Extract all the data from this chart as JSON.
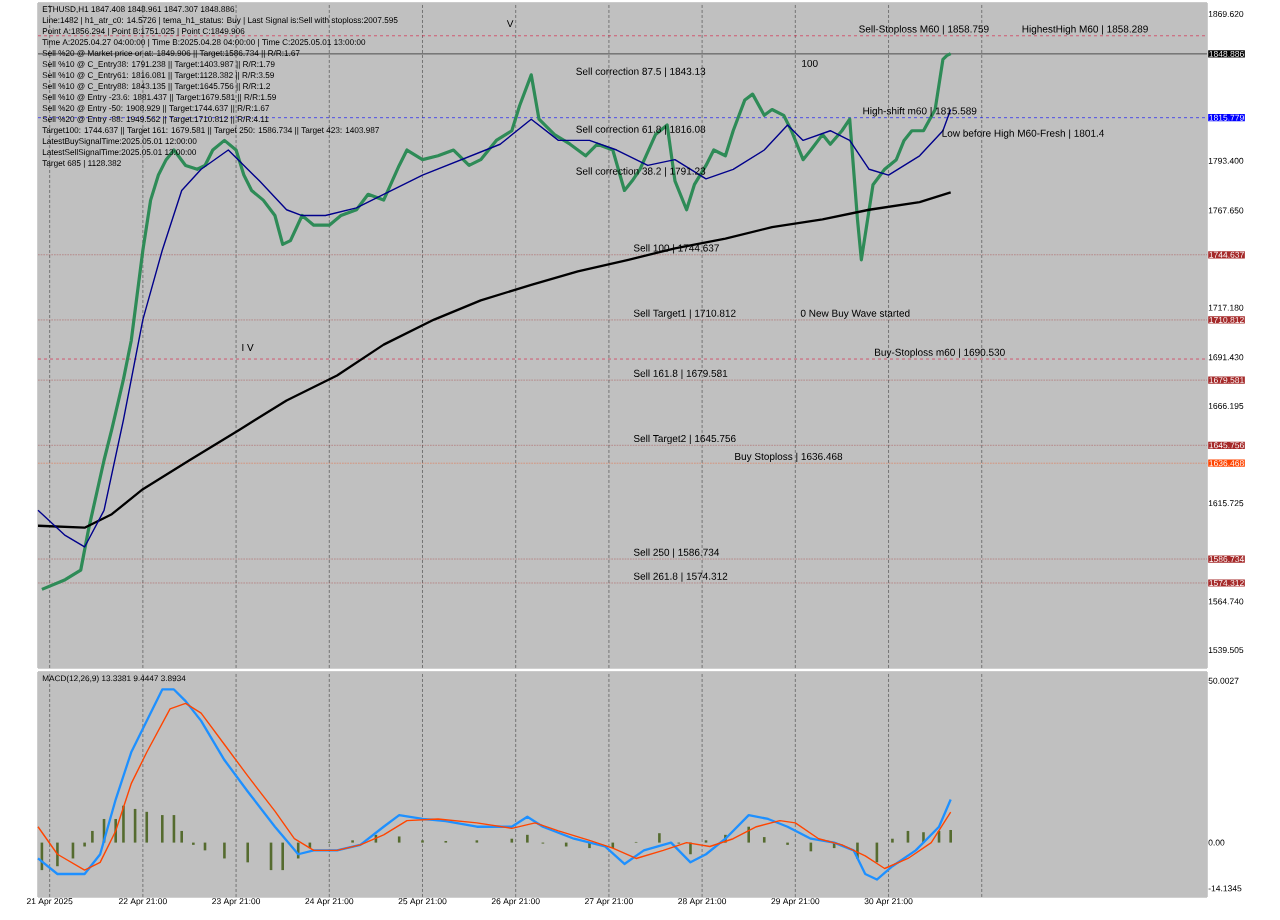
{
  "chart_data": [
    {
      "type": "line",
      "title": "ETHUSD,H1  1847.408 1848.961 1847.307 1848.886",
      "annotations": [
        "Line:1482 | h1_atr_c0: 14.5726 | tema_h1_status: Buy | Last Signal is:Sell with stoploss:2007.595",
        "Point A:1856.294 | Point B:1751.025 | Point C:1849.906",
        "Time A:2025.04.27 04:00:00 | Time B:2025.04.28 04:00:00 | Time C:2025.05.01 13:00:00",
        "Sell %20 @ Market price or at: 1849.906 || Target:1586.734 || R/R:1.67",
        "Sell %10 @ C_Entry38: 1791.238 || Target:1403.987 || R/R:1.79",
        "Sell %10 @ C_Entry61: 1816.081 || Target:1128.382 || R/R:3.59",
        "Sell %10 @ C_Entry88: 1843.135 || Target:1645.756 || R/R:1.2",
        "Sell %10 @ Entry -23.6: 1881.437 || Target:1679.581 || R/R:1.59",
        "Sell %20 @ Entry -50: 1908.929 || Target:1744.637 || R/R:1.67",
        "Sell %20 @ Entry -88: 1949.562 || Target:1710.812 || R/R:4.11",
        "Target100: 1744.637 || Target 161: 1679.581 || Target 250: 1586.734 || Target 423: 1403.987",
        "LatestBuySignalTime:2025.05.01 12:00:00",
        "LatestSellSignalTime:2025.05.01 13:00:00",
        "Target 685 | 1128.382",
        "Sell correction 87.5 | 1843.13",
        "Sell correction 61.8 | 1816.08",
        "Sell correction 38.2 | 1791.23",
        "Low before High    M60-Fresh | 1801.4",
        "100",
        "I V",
        "V",
        {
          "text": "Sell-Stoploss M60 | 1858.759",
          "x": "2025-04-30T13:00",
          "y": 1858.289
        },
        {
          "text": "HighestHigh M60 | 1858.289",
          "x": "2025-05-02T07:00",
          "y": 1858.289
        },
        {
          "text": "High-shift m60 | 1815.589",
          "x": "2025-04-30T14:00",
          "y": 1815.779
        },
        {
          "text": "Buy-Stoploss m60 | 1690.530",
          "x": "2025-04-30T17:00",
          "y": 1690.53
        },
        {
          "text": "Sell 100 | 1744.637",
          "x": "2025-04-28T03:00",
          "y": 1744.637
        },
        {
          "text": "Sell Target1 | 1710.812",
          "x": "2025-04-28T03:00",
          "y": 1710.812
        },
        {
          "text": "0 New Buy Wave started",
          "x": "2025-04-29T22:00",
          "y": 1710.812
        },
        {
          "text": "Sell 161.8 | 1679.581",
          "x": "2025-04-28T03:00",
          "y": 1679.581
        },
        {
          "text": "Sell Target2 | 1645.756",
          "x": "2025-04-28T03:00",
          "y": 1645.756
        },
        {
          "text": "Buy Stoploss | 1636.468",
          "x": "2025-04-29T05:00",
          "y": 1636.468
        },
        {
          "text": "Sell  250 | 1586.734",
          "x": "2025-04-28T03:00",
          "y": 1586.734
        },
        {
          "text": "Sell  261.8 | 1574.312",
          "x": "2025-04-28T03:00",
          "y": 1574.312
        }
      ],
      "xlim": [
        "2025-04-21T18:00",
        "2025-05-04T07:00"
      ],
      "xticks": [
        "2025-04-21T21:00",
        "2025-04-22T21:00",
        "2025-04-23T21:00",
        "2025-04-24T21:00",
        "2025-04-25T21:00",
        "2025-04-26T21:00",
        "2025-04-27T21:00",
        "2025-04-28T21:00",
        "2025-04-29T21:00",
        "2025-04-30T21:00",
        "2025-05-01T21:00"
      ],
      "tick_labels": "y",
      "grid": "x",
      "ylim": [
        1530.2,
        1875.3
      ],
      "yticks": [
        {
          "value": 1869.62,
          "label": "1869.620"
        },
        1848.886,
        1815.779,
        {
          "value": 1793.4,
          "label": "1793.400"
        },
        {
          "value": 1767.65,
          "label": "1767.650"
        },
        1744.637,
        {
          "value": 1717.18,
          "label": "1717.180"
        },
        1710.812,
        {
          "value": 1691.43,
          "label": "1691.430"
        },
        1679.581,
        1666.195,
        1645.756,
        1636.468,
        1615.725,
        1586.734,
        1574.312,
        {
          "value": 1564.74,
          "label": "1564.740"
        },
        1539.505
      ],
      "ref_lines": [
        {
          "axis": "y",
          "value": 1858.289,
          "color": "#dc143c",
          "line_style": "dashed"
        },
        {
          "axis": "y",
          "value": 1848.886,
          "color": "#000000",
          "line_style": "solid"
        },
        {
          "axis": "y",
          "value": 1815.779,
          "color": "#0000ff",
          "line_style": "dashed"
        },
        {
          "axis": "y",
          "value": 1744.637,
          "color": "#a52a2a",
          "line_style": "dotted"
        },
        {
          "axis": "y",
          "value": 1710.812,
          "color": "#a52a2a",
          "line_style": "dotted"
        },
        {
          "axis": "y",
          "value": 1690.53,
          "color": "#dc143c",
          "line_style": "dashed"
        },
        {
          "axis": "y",
          "value": 1679.581,
          "color": "#a52a2a",
          "line_style": "dotted"
        },
        {
          "axis": "y",
          "value": 1645.756,
          "color": "#a52a2a",
          "line_style": "dotted"
        },
        {
          "axis": "y",
          "value": 1636.468,
          "color": "#ff4500",
          "line_style": "dotted"
        },
        {
          "axis": "y",
          "value": 1586.734,
          "color": "#a52a2a",
          "line_style": "dotted"
        },
        {
          "axis": "y",
          "value": 1574.312,
          "color": "#a52a2a",
          "line_style": "dotted"
        }
      ],
      "series": [
        {
          "color": "#2e8b57",
          "x": [
            "2025-04-21T19:00",
            "2025-04-22T01:00",
            "2025-04-22T05:00",
            "2025-04-22T07:00",
            "2025-04-22T11:00",
            "2025-04-22T13:00",
            "2025-04-22T16:00",
            "2025-04-22T18:00",
            "2025-04-22T21:00",
            "2025-04-22T23:00",
            "2025-04-23T01:00",
            "2025-04-23T03:00",
            "2025-04-23T05:00",
            "2025-04-23T08:00",
            "2025-04-23T11:00",
            "2025-04-23T13:00",
            "2025-04-23T15:00",
            "2025-04-23T18:00",
            "2025-04-23T21:00",
            "2025-04-23T23:00",
            "2025-04-24T01:00",
            "2025-04-24T04:00",
            "2025-04-24T07:00",
            "2025-04-24T09:00",
            "2025-04-24T11:00",
            "2025-04-24T14:00",
            "2025-04-24T17:00",
            "2025-04-24T19:00",
            "2025-04-24T21:00",
            "2025-04-25T00:00",
            "2025-04-25T04:00",
            "2025-04-25T07:00",
            "2025-04-25T11:00",
            "2025-04-25T15:00",
            "2025-04-25T17:00",
            "2025-04-25T21:00",
            "2025-04-26T01:00",
            "2025-04-26T05:00",
            "2025-04-26T09:00",
            "2025-04-26T12:00",
            "2025-04-26T16:00",
            "2025-04-26T20:00",
            "2025-04-26T22:00",
            "2025-04-27T01:00",
            "2025-04-27T03:00",
            "2025-04-27T07:00",
            "2025-04-27T11:00",
            "2025-04-27T15:00",
            "2025-04-27T18:00",
            "2025-04-27T22:00",
            "2025-04-28T01:00",
            "2025-04-28T03:00",
            "2025-04-28T05:00",
            "2025-04-28T09:00",
            "2025-04-28T12:00",
            "2025-04-28T14:00",
            "2025-04-28T17:00",
            "2025-04-28T19:00",
            "2025-04-28T22:00",
            "2025-04-29T00:00",
            "2025-04-29T03:00",
            "2025-04-29T05:00",
            "2025-04-29T08:00",
            "2025-04-29T10:00",
            "2025-04-29T13:00",
            "2025-04-29T15:00",
            "2025-04-29T18:00",
            "2025-04-29T20:00",
            "2025-04-29T23:00",
            "2025-04-30T01:00",
            "2025-04-30T04:00",
            "2025-04-30T06:00",
            "2025-04-30T09:00",
            "2025-04-30T11:00",
            "2025-04-30T13:00",
            "2025-04-30T14:00",
            "2025-04-30T16:00",
            "2025-04-30T17:00",
            "2025-04-30T20:00",
            "2025-04-30T23:00",
            "2025-05-01T01:00",
            "2025-05-01T03:00",
            "2025-05-01T06:00",
            "2025-05-01T09:00",
            "2025-05-01T11:00",
            "2025-05-01T12:00",
            "2025-05-01T13:00"
          ],
          "values": [
            1571,
            1576,
            1581,
            1602,
            1638,
            1654,
            1680,
            1700,
            1747,
            1773,
            1786,
            1794,
            1799,
            1791,
            1789,
            1791,
            1799,
            1804,
            1799,
            1786,
            1778,
            1773,
            1765,
            1750,
            1752,
            1765,
            1760,
            1760,
            1760,
            1765,
            1768,
            1776,
            1773,
            1791,
            1799,
            1794,
            1796,
            1799,
            1791,
            1794,
            1804,
            1809,
            1822,
            1838,
            1815,
            1807,
            1802,
            1796,
            1802,
            1799,
            1778,
            1783,
            1789,
            1807,
            1812,
            1783,
            1768,
            1781,
            1791,
            1799,
            1796,
            1809,
            1825,
            1828,
            1817,
            1820,
            1817,
            1809,
            1794,
            1799,
            1807,
            1802,
            1809,
            1815,
            1763,
            1742,
            1768,
            1781,
            1789,
            1794,
            1804,
            1809,
            1809,
            1820,
            1846,
            1848,
            1849
          ]
        },
        {
          "color": "#000000",
          "x": [
            "2025-04-21T18:00",
            "2025-04-22T06:00",
            "2025-04-22T13:00",
            "2025-04-22T21:00",
            "2025-04-23T09:00",
            "2025-04-23T22:00",
            "2025-04-24T10:00",
            "2025-04-24T23:00",
            "2025-04-25T11:00",
            "2025-04-26T00:00",
            "2025-04-26T12:00",
            "2025-04-27T01:00",
            "2025-04-27T13:00",
            "2025-04-28T02:00",
            "2025-04-28T14:00",
            "2025-04-29T03:00",
            "2025-04-29T15:00",
            "2025-04-30T04:00",
            "2025-04-30T16:00",
            "2025-05-01T05:00",
            "2025-05-01T13:00"
          ],
          "values": [
            1604,
            1603,
            1610,
            1623,
            1638,
            1654,
            1669,
            1682,
            1698,
            1711,
            1721,
            1729,
            1736,
            1742,
            1748,
            1753,
            1759,
            1763,
            1768,
            1772,
            1777
          ]
        },
        {
          "color": "#00008b",
          "x": [
            "2025-04-21T18:00",
            "2025-04-22T01:00",
            "2025-04-22T06:00",
            "2025-04-22T11:00",
            "2025-04-22T16:00",
            "2025-04-22T21:00",
            "2025-04-23T02:00",
            "2025-04-23T07:00",
            "2025-04-23T12:00",
            "2025-04-23T19:00",
            "2025-04-24T03:00",
            "2025-04-24T10:00",
            "2025-04-24T14:00",
            "2025-04-24T20:00",
            "2025-04-25T04:00",
            "2025-04-25T11:00",
            "2025-04-25T21:00",
            "2025-04-26T07:00",
            "2025-04-26T17:00",
            "2025-04-27T01:00",
            "2025-04-27T08:00",
            "2025-04-27T16:00",
            "2025-04-27T23:00",
            "2025-04-28T07:00",
            "2025-04-28T14:00",
            "2025-04-28T22:00",
            "2025-04-29T05:00",
            "2025-04-29T13:00",
            "2025-04-29T19:00",
            "2025-04-29T23:00",
            "2025-04-30T06:00",
            "2025-04-30T11:00",
            "2025-04-30T16:00",
            "2025-04-30T21:00",
            "2025-05-01T05:00",
            "2025-05-01T11:00",
            "2025-05-01T13:00"
          ],
          "values": [
            1612,
            1599,
            1593,
            1612,
            1659,
            1711,
            1747,
            1778,
            1789,
            1799,
            1783,
            1768,
            1765,
            1765,
            1769,
            1776,
            1786,
            1794,
            1802,
            1815,
            1804,
            1804,
            1799,
            1791,
            1794,
            1784,
            1789,
            1799,
            1812,
            1804,
            1809,
            1804,
            1789,
            1786,
            1796,
            1809,
            1820
          ]
        }
      ]
    },
    {
      "type": "bar",
      "title": "MACD(12,26,9) 13.3381 9.4447 3.8934",
      "xlim": [
        "2025-04-21T18:00",
        "2025-05-04T07:00"
      ],
      "xticks": [
        {
          "value": "2025-04-21T21:00",
          "label": "21 Apr 2025"
        },
        {
          "value": "2025-04-22T21:00",
          "label": "22 Apr 21:00"
        },
        {
          "value": "2025-04-23T21:00",
          "label": "23 Apr 21:00"
        },
        {
          "value": "2025-04-24T21:00",
          "label": "24 Apr 21:00"
        },
        {
          "value": "2025-04-25T21:00",
          "label": "25 Apr 21:00"
        },
        {
          "value": "2025-04-26T21:00",
          "label": "26 Apr 21:00"
        },
        {
          "value": "2025-04-27T21:00",
          "label": "27 Apr 21:00"
        },
        {
          "value": "2025-04-28T21:00",
          "label": "28 Apr 21:00"
        },
        {
          "value": "2025-04-29T21:00",
          "label": "29 Apr 21:00"
        },
        {
          "value": "2025-04-30T21:00",
          "label": "30 Apr 21:00"
        },
        {
          "value": "2025-05-01T21:00",
          "label": null
        }
      ],
      "grid": "x",
      "ylim": [
        -16.8,
        52.7
      ],
      "yticks": [
        50.0027,
        {
          "value": 0,
          "label": "0.00"
        },
        -14.1345
      ],
      "series": [
        {
          "type": "bar",
          "color": "#556b2f",
          "x": [
            "2025-04-21T19:00",
            "2025-04-21T23:00",
            "2025-04-22T03:00",
            "2025-04-22T06:00",
            "2025-04-22T08:00",
            "2025-04-22T11:00",
            "2025-04-22T14:00",
            "2025-04-22T16:00",
            "2025-04-22T19:00",
            "2025-04-22T22:00",
            "2025-04-23T02:00",
            "2025-04-23T05:00",
            "2025-04-23T07:00",
            "2025-04-23T10:00",
            "2025-04-23T13:00",
            "2025-04-23T18:00",
            "2025-04-24T00:00",
            "2025-04-24T06:00",
            "2025-04-24T09:00",
            "2025-04-24T13:00",
            "2025-04-24T16:00",
            "2025-04-24T21:00",
            "2025-04-25T03:00",
            "2025-04-25T09:00",
            "2025-04-25T15:00",
            "2025-04-25T21:00",
            "2025-04-26T03:00",
            "2025-04-26T11:00",
            "2025-04-26T20:00",
            "2025-04-27T00:00",
            "2025-04-27T04:00",
            "2025-04-27T10:00",
            "2025-04-27T16:00",
            "2025-04-27T22:00",
            "2025-04-28T04:00",
            "2025-04-28T10:00",
            "2025-04-28T15:00",
            "2025-04-28T18:00",
            "2025-04-28T22:00",
            "2025-04-29T03:00",
            "2025-04-29T09:00",
            "2025-04-29T13:00",
            "2025-04-29T19:00",
            "2025-04-30T01:00",
            "2025-04-30T07:00",
            "2025-04-30T13:00",
            "2025-04-30T18:00",
            "2025-04-30T22:00",
            "2025-05-01T02:00",
            "2025-05-01T06:00",
            "2025-05-01T10:00",
            "2025-05-01T13:00"
          ],
          "values": [
            -8.5,
            -7.3,
            -4.9,
            -1.2,
            3.6,
            7.3,
            7.3,
            11.4,
            10.4,
            9.5,
            8.5,
            8.5,
            3.6,
            -0.7,
            -2.4,
            -4.9,
            -6.1,
            -8.5,
            -8.5,
            -4.9,
            -1.7,
            0.2,
            0.7,
            2.4,
            1.9,
            0.7,
            0.5,
            0.7,
            1.2,
            2.4,
            -0.3,
            -1.2,
            -1.7,
            -1.7,
            0.2,
            2.9,
            -0.3,
            -3.6,
            0.7,
            2.4,
            4.9,
            1.7,
            -0.7,
            -2.7,
            -1.7,
            -4.9,
            -6.1,
            1.2,
            3.6,
            3.2,
            3.6,
            3.9
          ]
        },
        {
          "type": "line",
          "color": "#1e90ff",
          "x": [
            "2025-04-21T18:00",
            "2025-04-21T23:00",
            "2025-04-22T06:00",
            "2025-04-22T10:00",
            "2025-04-22T14:00",
            "2025-04-22T18:00",
            "2025-04-22T22:00",
            "2025-04-23T02:00",
            "2025-04-23T05:00",
            "2025-04-23T08:00",
            "2025-04-23T12:00",
            "2025-04-23T18:00",
            "2025-04-24T00:00",
            "2025-04-24T07:00",
            "2025-04-24T13:00",
            "2025-04-24T17:00",
            "2025-04-24T23:00",
            "2025-04-25T05:00",
            "2025-04-25T11:00",
            "2025-04-25T15:00",
            "2025-04-25T21:00",
            "2025-04-26T03:00",
            "2025-04-26T11:00",
            "2025-04-26T20:00",
            "2025-04-27T00:00",
            "2025-04-27T04:00",
            "2025-04-27T12:00",
            "2025-04-27T20:00",
            "2025-04-28T01:00",
            "2025-04-28T06:00",
            "2025-04-28T13:00",
            "2025-04-28T18:00",
            "2025-04-28T22:00",
            "2025-04-29T03:00",
            "2025-04-29T09:00",
            "2025-04-29T14:00",
            "2025-04-29T19:00",
            "2025-04-30T01:00",
            "2025-04-30T07:00",
            "2025-04-30T12:00",
            "2025-04-30T15:00",
            "2025-04-30T18:00",
            "2025-04-30T22:00",
            "2025-05-01T04:00",
            "2025-05-01T10:00",
            "2025-05-01T13:00"
          ],
          "values": [
            -4.9,
            -9.7,
            -9.7,
            -3.6,
            13.3,
            27.9,
            37.6,
            47.3,
            47.3,
            43.7,
            37.6,
            25.5,
            15.8,
            4.9,
            -3.6,
            -2.4,
            -2.4,
            -0.7,
            4.9,
            8.5,
            7.3,
            6.6,
            4.9,
            4.9,
            8,
            4.9,
            1.2,
            -1.2,
            -6.6,
            -2.4,
            0,
            -6.1,
            -3.6,
            1.2,
            8.5,
            7.3,
            4.9,
            1.2,
            0,
            -2.4,
            -9.7,
            -11.4,
            -7.3,
            -2.4,
            4.9,
            13.3
          ]
        },
        {
          "type": "line",
          "color": "#ff4500",
          "x": [
            "2025-04-21T18:00",
            "2025-04-21T23:00",
            "2025-04-22T06:00",
            "2025-04-22T10:00",
            "2025-04-22T14:00",
            "2025-04-22T18:00",
            "2025-04-22T22:00",
            "2025-04-23T04:00",
            "2025-04-23T08:00",
            "2025-04-23T12:00",
            "2025-04-23T18:00",
            "2025-04-24T00:00",
            "2025-04-24T07:00",
            "2025-04-24T12:00",
            "2025-04-24T17:00",
            "2025-04-24T23:00",
            "2025-04-25T05:00",
            "2025-04-25T11:00",
            "2025-04-25T17:00",
            "2025-04-26T01:00",
            "2025-04-26T11:00",
            "2025-04-26T20:00",
            "2025-04-27T02:00",
            "2025-04-27T08:00",
            "2025-04-27T16:00",
            "2025-04-27T22:00",
            "2025-04-28T04:00",
            "2025-04-28T11:00",
            "2025-04-28T17:00",
            "2025-04-28T23:00",
            "2025-04-29T05:00",
            "2025-04-29T11:00",
            "2025-04-29T17:00",
            "2025-04-29T21:00",
            "2025-04-30T03:00",
            "2025-04-30T09:00",
            "2025-04-30T15:00",
            "2025-04-30T20:00",
            "2025-05-01T02:00",
            "2025-05-01T08:00",
            "2025-05-01T13:00"
          ],
          "values": [
            4.9,
            -3.6,
            -8.5,
            -6.1,
            3.6,
            18.2,
            27.9,
            41.3,
            43,
            40,
            30.3,
            20.6,
            9.7,
            1.2,
            -2.4,
            -2.4,
            -0.7,
            2.4,
            6.8,
            7.3,
            6.1,
            4.4,
            6.1,
            3.6,
            0.7,
            -1.7,
            -4.9,
            -2.4,
            0,
            -1.2,
            1.2,
            4.9,
            6.8,
            6.1,
            1.2,
            -0.7,
            -4.1,
            -8,
            -4.9,
            0,
            9.4
          ]
        }
      ]
    }
  ]
}
